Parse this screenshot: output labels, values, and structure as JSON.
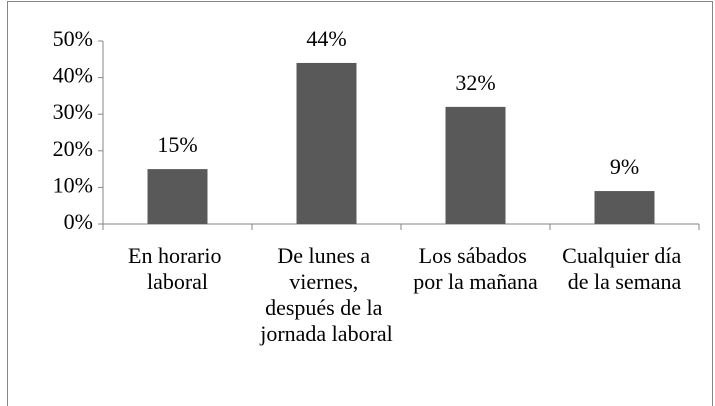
{
  "chart_data": {
    "type": "bar",
    "categories": [
      "En horario laboral",
      "De lunes a viernes, después de la jornada laboral",
      "Los sábados por la mañana",
      "Cualquier día de la semana"
    ],
    "values": [
      15,
      44,
      32,
      9
    ],
    "value_labels": [
      "15%",
      "44%",
      "32%",
      "9%"
    ],
    "color": "#595959",
    "ylim": [
      0,
      50
    ],
    "yticks": [
      {
        "value": 0,
        "label": "0%"
      },
      {
        "value": 10,
        "label": "10%"
      },
      {
        "value": 20,
        "label": "20%"
      },
      {
        "value": 30,
        "label": "30%"
      },
      {
        "value": 40,
        "label": "40%"
      },
      {
        "value": 50,
        "label": "50%"
      }
    ],
    "grid": false
  }
}
